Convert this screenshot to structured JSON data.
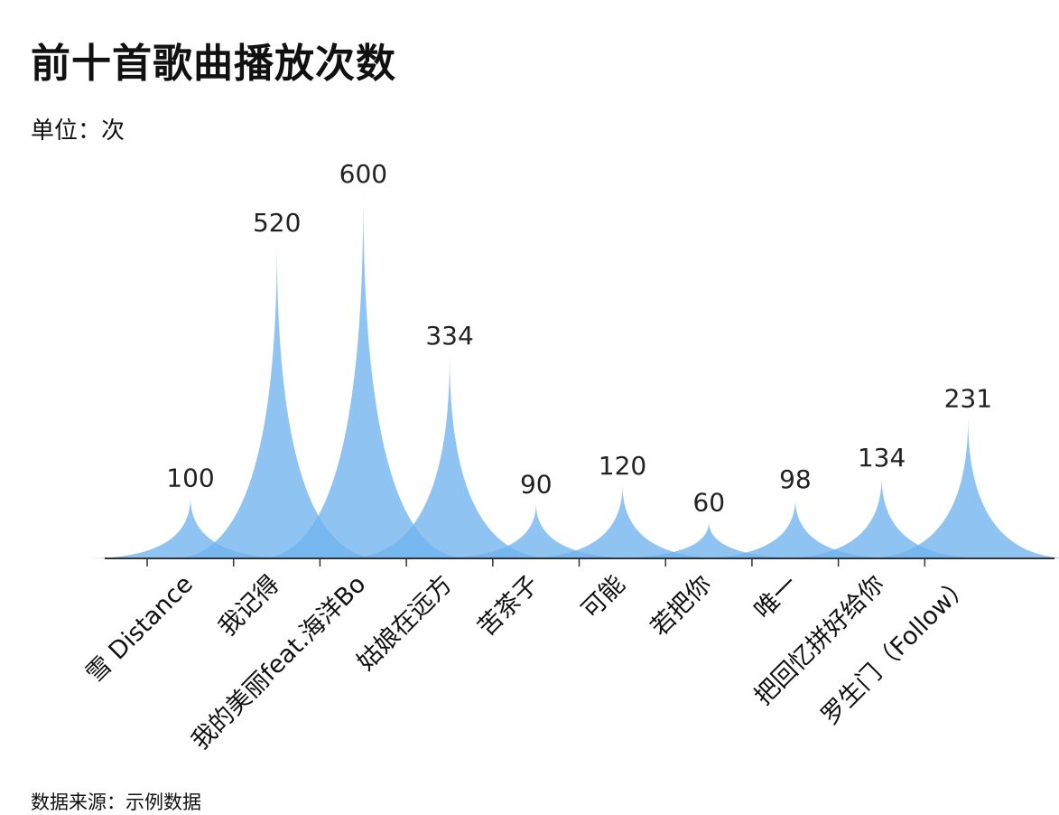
{
  "title": "前十首歌曲播放次数",
  "subtitle": "单位：次",
  "source": "数据来源：示例数据",
  "colors": {
    "peak": "#6fb3ee",
    "axis": "#333333"
  },
  "chart_data": {
    "type": "area",
    "style": "spike peaks",
    "categories": [
      "雪 Distance",
      "我记得",
      "我的美丽feat.海洋Bo",
      "姑娘在远方",
      "苦茶子",
      "可能",
      "若把你",
      "唯一",
      "把回忆拼好给你",
      "罗生门（Follow）"
    ],
    "values": [
      100,
      520,
      600,
      334,
      90,
      120,
      60,
      98,
      134,
      231
    ],
    "xlabel": "",
    "ylabel": "",
    "ylim": [
      0,
      600
    ],
    "grid": false,
    "legend": "none"
  }
}
